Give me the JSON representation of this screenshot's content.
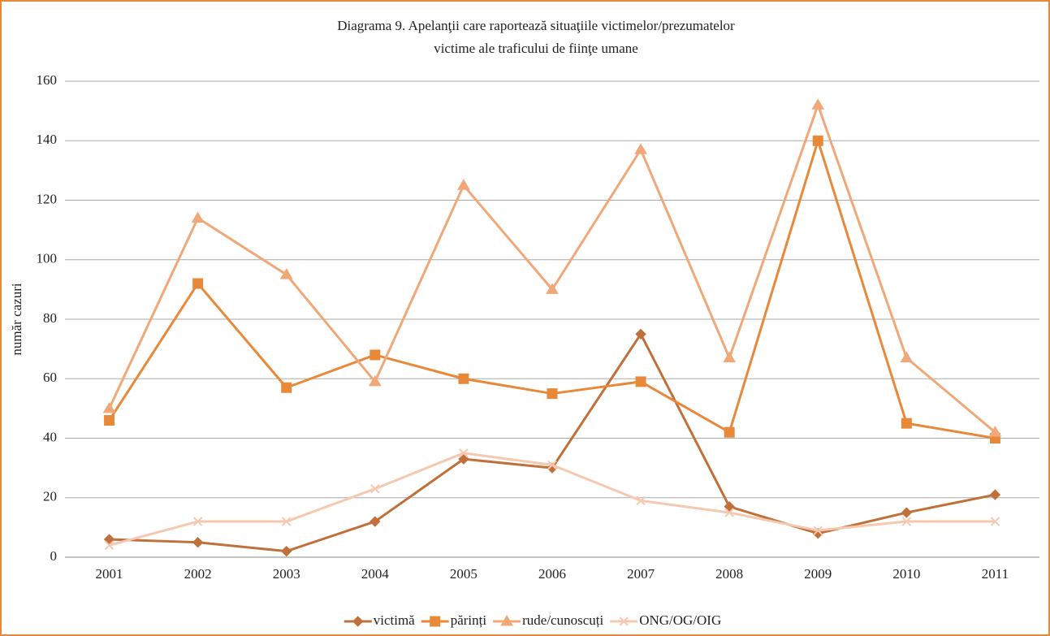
{
  "chart_data": {
    "type": "line",
    "title": [
      "Diagrama 9. Apelanţii care raportează situaţiile victimelor/prezumatelor",
      "victime ale traficului de fiinţe umane"
    ],
    "y_label": "număr cazuri",
    "categories": [
      "2001",
      "2002",
      "2003",
      "2004",
      "2005",
      "2006",
      "2007",
      "2008",
      "2009",
      "2010",
      "2011"
    ],
    "series": [
      {
        "name": "victimă",
        "color": "#c0703a",
        "marker": "diamond",
        "values": [
          6,
          5,
          2,
          12,
          33,
          30,
          75,
          17,
          8,
          15,
          21
        ]
      },
      {
        "name": "părinți",
        "color": "#e8893a",
        "marker": "square",
        "values": [
          46,
          92,
          57,
          68,
          60,
          55,
          59,
          42,
          140,
          45,
          40
        ]
      },
      {
        "name": "rude/cunoscuți",
        "color": "#f0a878",
        "marker": "triangle",
        "values": [
          50,
          114,
          95,
          59,
          125,
          90,
          137,
          67,
          152,
          67,
          42
        ]
      },
      {
        "name": "ONG/OG/OIG",
        "color": "#f5c8b0",
        "marker": "x",
        "values": [
          4,
          12,
          12,
          23,
          35,
          31,
          19,
          15,
          9,
          12,
          12
        ]
      }
    ],
    "ylim": [
      0,
      160
    ],
    "yticks": [
      0,
      20,
      40,
      60,
      80,
      100,
      120,
      140,
      160
    ],
    "grid": true,
    "legend": "bottom"
  }
}
